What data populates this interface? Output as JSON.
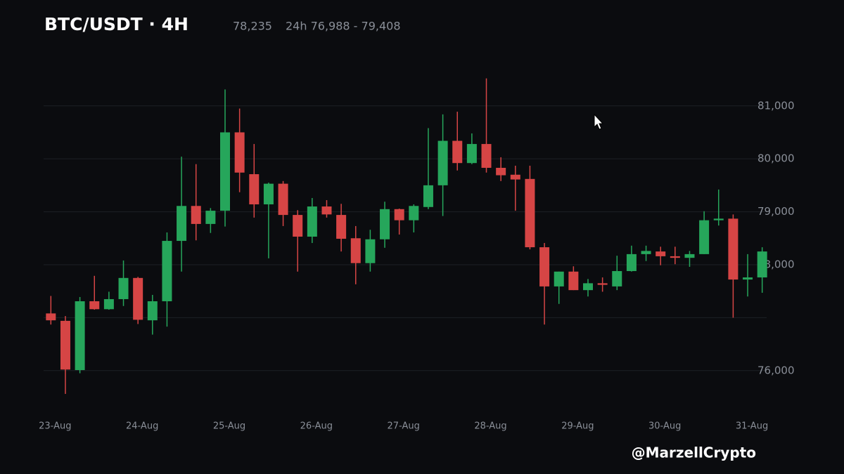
{
  "chart_data": {
    "type": "candlestick",
    "title": "BTC/USDT · 4H",
    "last_price": "78,235",
    "range_24h": "24h 76,988 - 79,408",
    "watermark": "@MarzellCrypto",
    "categories": [
      "23-Aug",
      null,
      null,
      null,
      null,
      null,
      "24-Aug",
      null,
      null,
      null,
      null,
      null,
      "25-Aug",
      null,
      null,
      null,
      null,
      null,
      "26-Aug",
      null,
      null,
      null,
      null,
      null,
      "27-Aug",
      null,
      null,
      null,
      null,
      null,
      "28-Aug",
      null,
      null,
      null,
      null,
      null,
      "29-Aug",
      null,
      null,
      null,
      null,
      null,
      "30-Aug",
      null,
      null,
      null,
      null,
      null,
      "31-Aug",
      null
    ],
    "open": [
      77080,
      76940,
      76010,
      77310,
      77160,
      77350,
      77750,
      76950,
      77310,
      78450,
      79110,
      78770,
      79020,
      80500,
      79710,
      79140,
      79530,
      78940,
      78530,
      79100,
      78940,
      78500,
      78030,
      78480,
      79050,
      78840,
      79090,
      79500,
      80340,
      79920,
      80280,
      79830,
      79700,
      79620,
      78330,
      77590,
      77870,
      77520,
      77650,
      77590,
      77880,
      78200,
      78250,
      78160,
      78130,
      78200,
      78840,
      78870,
      77720,
      77760
    ],
    "high": [
      77410,
      77030,
      77390,
      77790,
      77490,
      78080,
      77770,
      77430,
      78610,
      80040,
      79900,
      79070,
      81310,
      80950,
      80280,
      79550,
      79580,
      79030,
      79260,
      79220,
      79150,
      78730,
      78660,
      79190,
      79060,
      79140,
      80580,
      80840,
      80890,
      80480,
      81520,
      80030,
      79870,
      79870,
      78410,
      77870,
      77970,
      77730,
      77760,
      78170,
      78360,
      78360,
      78340,
      78340,
      78260,
      79010,
      79420,
      78950,
      78200,
      78330
    ],
    "low": [
      76870,
      75560,
      75950,
      77150,
      77150,
      77220,
      76880,
      76680,
      76830,
      77870,
      78460,
      78600,
      78720,
      79370,
      78890,
      78120,
      78730,
      77870,
      78410,
      78890,
      78250,
      77630,
      77870,
      78320,
      78570,
      78610,
      79050,
      78920,
      79780,
      79900,
      79740,
      79580,
      79020,
      78290,
      76870,
      77260,
      77520,
      77400,
      77490,
      77520,
      77870,
      78070,
      77990,
      78010,
      77960,
      78200,
      78740,
      77000,
      77400,
      77470
    ],
    "close": [
      76950,
      76020,
      77310,
      77160,
      77350,
      77750,
      76960,
      77310,
      78450,
      79110,
      78770,
      79020,
      80500,
      79740,
      79140,
      79530,
      78940,
      78530,
      79100,
      78950,
      78490,
      78030,
      78480,
      79050,
      78840,
      79110,
      79500,
      80340,
      79920,
      80280,
      79830,
      79690,
      79610,
      78330,
      77590,
      77870,
      77520,
      77650,
      77620,
      77880,
      78200,
      78260,
      78160,
      78130,
      78200,
      78840,
      78870,
      77720,
      77760,
      78250
    ],
    "up_color": "#26a65b",
    "down_color": "#d64545",
    "ylim": [
      75400,
      81700
    ],
    "yticks": [
      {
        "value": 76000,
        "label": "76,000"
      },
      {
        "value": 78000,
        "label": "78,000"
      },
      {
        "value": 79000,
        "label": "79,000"
      },
      {
        "value": 80000,
        "label": "80,000"
      },
      {
        "value": 81000,
        "label": "81,000"
      }
    ],
    "gridlines": [
      76000,
      77000,
      78000,
      79000,
      80000,
      81000
    ]
  }
}
